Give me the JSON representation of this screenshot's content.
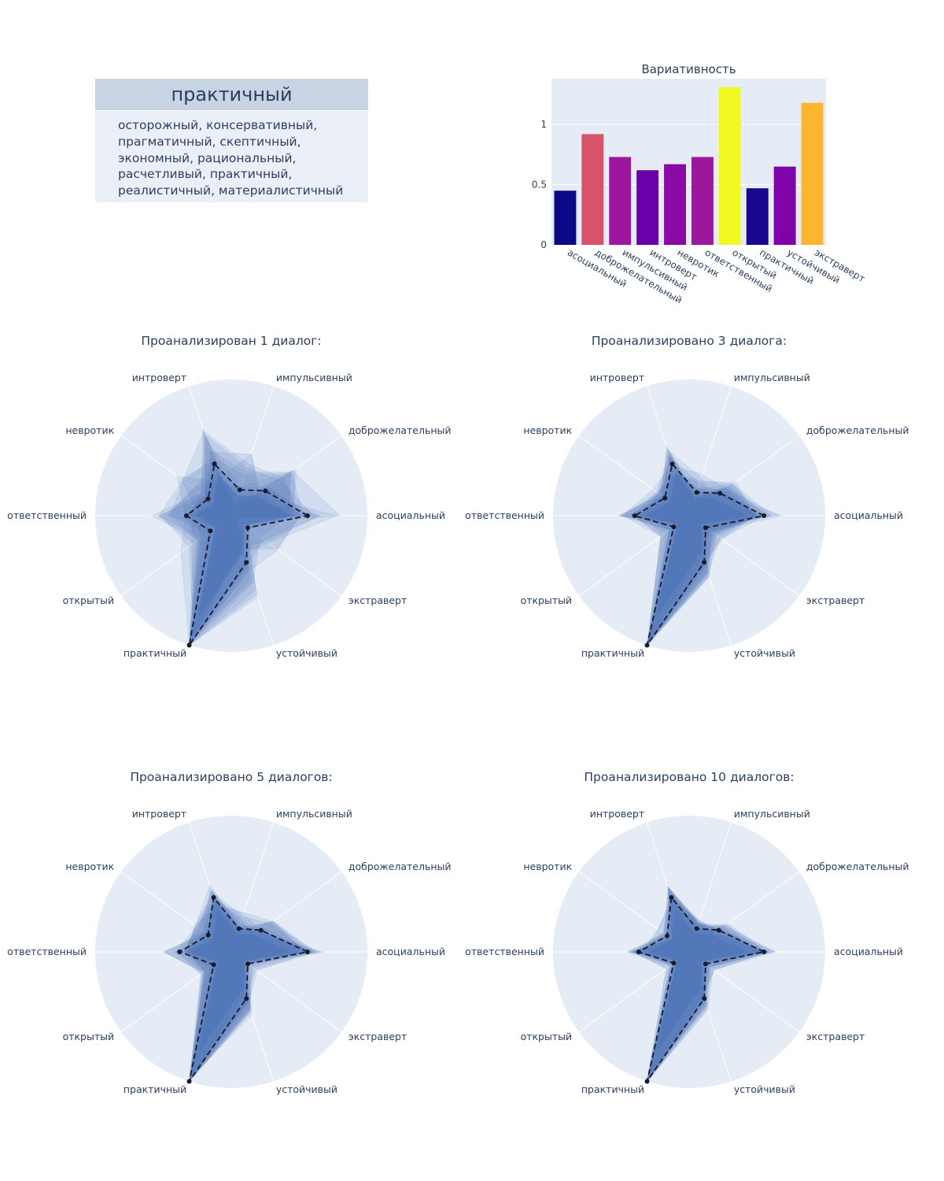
{
  "card": {
    "title": "практичный",
    "lines": [
      "осторожный, консервативный,",
      "прагматичный, скептичный,",
      "экономный, рациональный,",
      "расчетливый, практичный,",
      "реалистичный, материалистичный"
    ]
  },
  "colors": {
    "plot_bg": "#e5ecf6",
    "radar_fill": "#4a72b8",
    "mean_line": "#1a1a2e",
    "text": "#2a3f5f"
  },
  "chart_data": [
    {
      "type": "bar",
      "title": "Вариативность",
      "categories": [
        "асоциальный",
        "доброжелательный",
        "импульсивный",
        "интроверт",
        "невротик",
        "ответственный",
        "открытый",
        "практичный",
        "устойчивый",
        "экстраверт"
      ],
      "values": [
        0.45,
        0.92,
        0.73,
        0.62,
        0.67,
        0.73,
        1.31,
        0.47,
        0.65,
        1.18
      ],
      "bar_colors": [
        "#0d0887",
        "#d6536b",
        "#9c179e",
        "#6a00a8",
        "#8a0aa5",
        "#9c179e",
        "#f0f921",
        "#1a0790",
        "#7e03a8",
        "#fdb42f"
      ],
      "ylim": [
        0,
        1.38
      ],
      "yticks": [
        0,
        0.5,
        1
      ],
      "ytick_labels": [
        "0",
        "0.5",
        "1"
      ],
      "grid": true
    },
    {
      "type": "radar",
      "title": "Проанализирован 1 диалог:",
      "axes": [
        "асоциальный",
        "доброжелательный",
        "импульсивный",
        "интроверт",
        "невротик",
        "ответственный",
        "открытый",
        "практичный",
        "устойчивый",
        "экстраверт"
      ],
      "mean": [
        0.56,
        0.31,
        0.2,
        0.4,
        0.21,
        0.33,
        0.19,
        1.0,
        0.36,
        0.15
      ],
      "spread": 0.22
    },
    {
      "type": "radar",
      "title": "Проанализировано 3 диалога:",
      "axes": [
        "асоциальный",
        "доброжелательный",
        "импульсивный",
        "интроверт",
        "невротик",
        "ответственный",
        "открытый",
        "практичный",
        "устойчивый",
        "экстраверт"
      ],
      "mean": [
        0.55,
        0.28,
        0.18,
        0.4,
        0.22,
        0.4,
        0.14,
        1.0,
        0.36,
        0.15
      ],
      "spread": 0.12
    },
    {
      "type": "radar",
      "title": "Проанализировано 5 диалогов:",
      "axes": [
        "асоциальный",
        "доброжелательный",
        "импульсивный",
        "интроверт",
        "невротик",
        "ответственный",
        "открытый",
        "практичный",
        "устойчивый",
        "экстраверт"
      ],
      "mean": [
        0.56,
        0.27,
        0.18,
        0.42,
        0.21,
        0.38,
        0.16,
        1.0,
        0.36,
        0.15
      ],
      "spread": 0.1
    },
    {
      "type": "radar",
      "title": "Проанализировано 10 диалогов:",
      "axes": [
        "асоциальный",
        "доброжелательный",
        "импульсивный",
        "интроверт",
        "невротик",
        "ответственный",
        "открытый",
        "практичный",
        "устойчивый",
        "экстраверт"
      ],
      "mean": [
        0.55,
        0.27,
        0.18,
        0.42,
        0.2,
        0.37,
        0.14,
        1.0,
        0.36,
        0.15
      ],
      "spread": 0.07
    }
  ]
}
